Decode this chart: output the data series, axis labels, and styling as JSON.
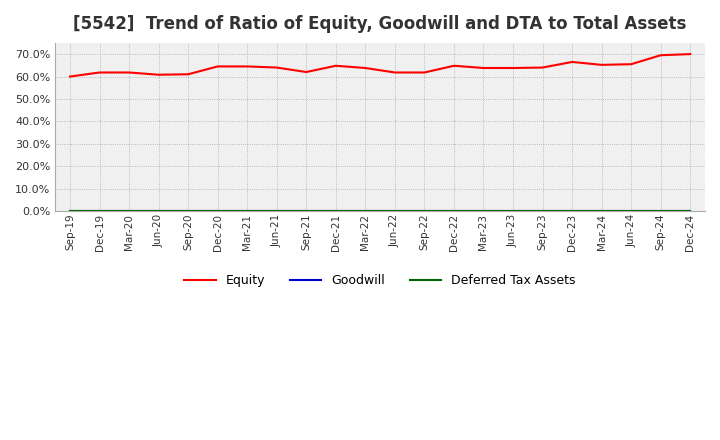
{
  "title": "[5542]  Trend of Ratio of Equity, Goodwill and DTA to Total Assets",
  "title_fontsize": 12,
  "ylim": [
    0.0,
    0.75
  ],
  "yticks": [
    0.0,
    0.1,
    0.2,
    0.3,
    0.4,
    0.5,
    0.6,
    0.7
  ],
  "x_labels": [
    "Sep-19",
    "Dec-19",
    "Mar-20",
    "Jun-20",
    "Sep-20",
    "Dec-20",
    "Mar-21",
    "Jun-21",
    "Sep-21",
    "Dec-21",
    "Mar-22",
    "Jun-22",
    "Sep-22",
    "Dec-22",
    "Mar-23",
    "Jun-23",
    "Sep-23",
    "Dec-23",
    "Mar-24",
    "Jun-24",
    "Sep-24",
    "Dec-24"
  ],
  "equity": [
    0.6,
    0.618,
    0.618,
    0.608,
    0.61,
    0.645,
    0.645,
    0.64,
    0.62,
    0.648,
    0.638,
    0.618,
    0.618,
    0.648,
    0.638,
    0.638,
    0.64,
    0.665,
    0.652,
    0.655,
    0.695,
    0.7
  ],
  "goodwill": [
    0.0,
    0.0,
    0.0,
    0.0,
    0.0,
    0.0,
    0.0,
    0.0,
    0.0,
    0.0,
    0.0,
    0.0,
    0.0,
    0.0,
    0.0,
    0.0,
    0.0,
    0.0,
    0.0,
    0.0,
    0.0,
    0.0
  ],
  "dta": [
    0.002,
    0.002,
    0.002,
    0.002,
    0.002,
    0.002,
    0.002,
    0.002,
    0.002,
    0.002,
    0.002,
    0.002,
    0.002,
    0.002,
    0.002,
    0.002,
    0.002,
    0.002,
    0.002,
    0.002,
    0.002,
    0.002
  ],
  "equity_color": "#ff0000",
  "goodwill_color": "#0000cc",
  "dta_color": "#006600",
  "line_width": 1.5,
  "bg_color": "#ffffff",
  "plot_bg_color": "#f0f0f0",
  "grid_color": "#aaaaaa",
  "tick_color": "#333333",
  "title_color": "#333333",
  "legend_labels": [
    "Equity",
    "Goodwill",
    "Deferred Tax Assets"
  ]
}
